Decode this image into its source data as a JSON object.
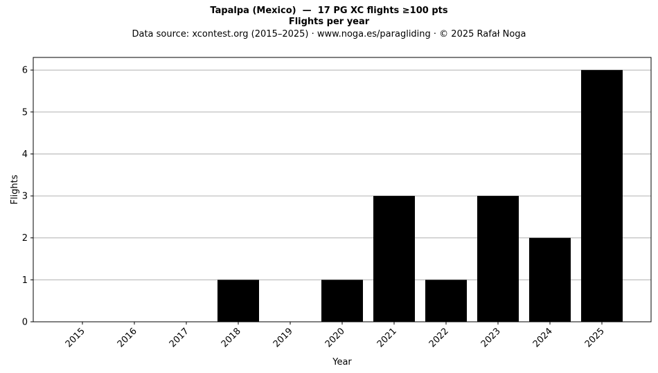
{
  "chart_data": {
    "type": "bar",
    "title": "Tapalpa (Mexico)  —  17 PG XC flights ≥100 pts",
    "title_line2": "Flights per year",
    "subtitle": "Data source: xcontest.org (2015–2025)  ·  www.noga.es/paragliding  ·  © 2025 Rafał Noga",
    "xlabel": "Year",
    "ylabel": "Flights",
    "categories": [
      "2015",
      "2016",
      "2017",
      "2018",
      "2019",
      "2020",
      "2021",
      "2022",
      "2023",
      "2024",
      "2025"
    ],
    "values": [
      0,
      0,
      0,
      1,
      0,
      1,
      3,
      1,
      3,
      2,
      6
    ],
    "ylim": [
      0,
      6.3
    ],
    "yticks": [
      0,
      1,
      2,
      3,
      4,
      5,
      6
    ],
    "grid": "y",
    "bar_color": "#000000",
    "grid_color": "#b0b0b0"
  }
}
